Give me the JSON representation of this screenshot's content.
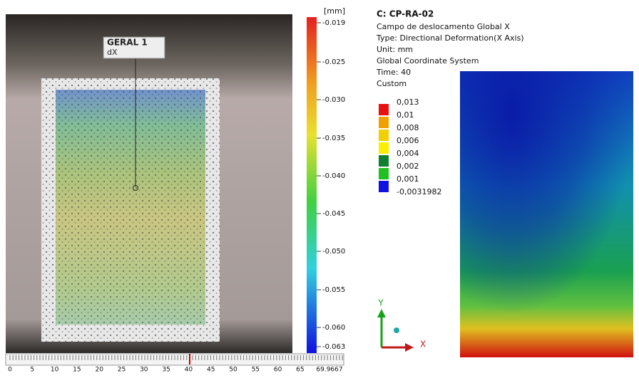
{
  "left_panel": {
    "probe": {
      "label": "GERAL 1",
      "quantity": "dX"
    },
    "colorbar": {
      "unit": "[mm]",
      "labels": [
        "-0.019",
        "-0.025",
        "-0.030",
        "-0.035",
        "-0.040",
        "-0.045",
        "-0.050",
        "-0.055",
        "-0.060",
        "-0.063"
      ]
    },
    "timeline": {
      "labels": [
        "0",
        "5",
        "10",
        "15",
        "20",
        "25",
        "30",
        "35",
        "40",
        "45",
        "50",
        "55",
        "60",
        "65",
        "69.9667"
      ]
    }
  },
  "right_panel": {
    "title": "C: CP-RA-02",
    "lines": [
      "Campo de deslocamento Global X",
      "Type: Directional Deformation(X Axis)",
      "Unit: mm",
      "Global Coordinate System",
      "Time: 40",
      "Custom"
    ],
    "legend": [
      "0,013",
      "0,01",
      "0,008",
      "0,006",
      "0,004",
      "0,002",
      "0,001",
      "-0,0031982"
    ],
    "axes": {
      "y": "Y",
      "x": "X"
    }
  }
}
